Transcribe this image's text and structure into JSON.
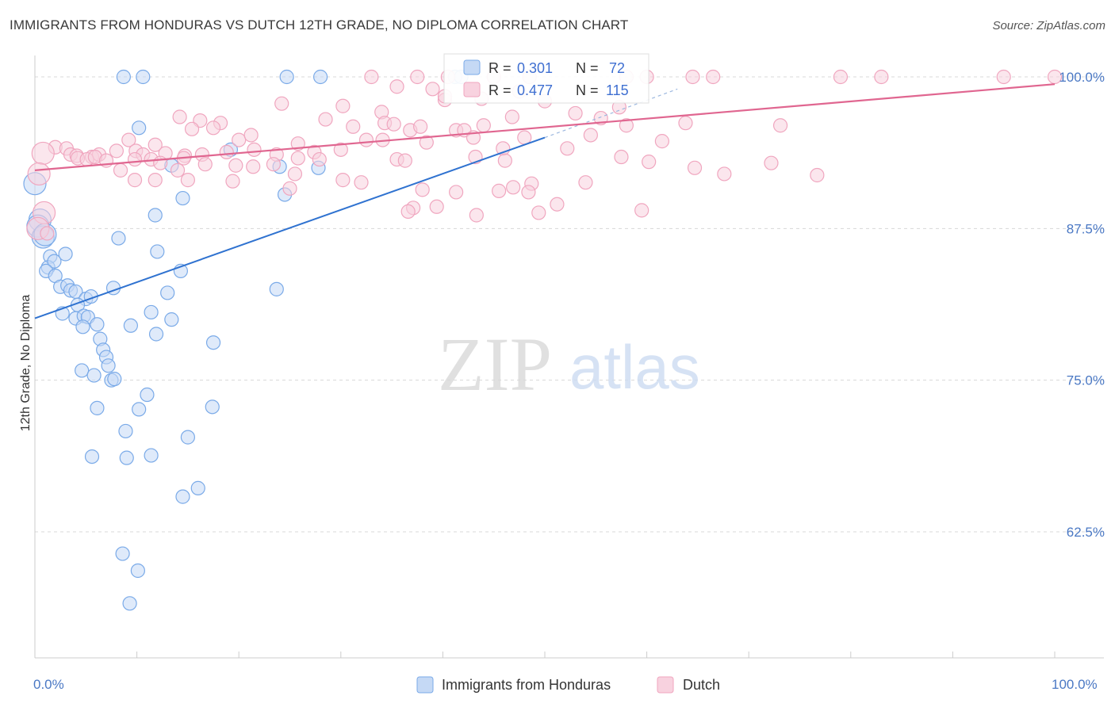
{
  "chart_data": {
    "type": "scatter",
    "title": "IMMIGRANTS FROM HONDURAS VS DUTCH 12TH GRADE, NO DIPLOMA CORRELATION CHART",
    "source": "Source: ZipAtlas.com",
    "watermark": {
      "zip": "ZIP",
      "atlas": "atlas"
    },
    "xlabel": "",
    "ylabel": "12th Grade, No Diploma",
    "xlim": [
      0,
      100
    ],
    "ylim": [
      52.5,
      101.5
    ],
    "x_tick_labels": [
      "0.0%",
      "100.0%"
    ],
    "y_ticks": [
      {
        "value": 100,
        "label": "100.0%"
      },
      {
        "value": 87.5,
        "label": "87.5%"
      },
      {
        "value": 75,
        "label": "75.0%"
      },
      {
        "value": 62.5,
        "label": "62.5%"
      }
    ],
    "legend_stats": [
      {
        "r_label": "R =",
        "r": "0.301",
        "n_label": "N =",
        "n": "72"
      },
      {
        "r_label": "R =",
        "r": "0.477",
        "n_label": "N =",
        "n": "115"
      }
    ],
    "series": [
      {
        "name": "Immigrants from Honduras",
        "color": "#7aaae8",
        "fill": "#c5d9f5",
        "line_color": "#2f72d0",
        "trend": {
          "x0": 0,
          "y0": 80.1,
          "x1": 50,
          "y1": 95.0,
          "dashed_to_x": 63,
          "dashed_to_y": 99.0
        },
        "points": [
          [
            8.7,
            100
          ],
          [
            10.6,
            100
          ],
          [
            24.7,
            100
          ],
          [
            28,
            100
          ],
          [
            41.2,
            100
          ],
          [
            41.8,
            100
          ],
          [
            10.2,
            95.8
          ],
          [
            19.2,
            94
          ],
          [
            13.4,
            92.7
          ],
          [
            24,
            92.6
          ],
          [
            27.8,
            92.5
          ],
          [
            0,
            91.2
          ],
          [
            14.5,
            90
          ],
          [
            24.5,
            90.3
          ],
          [
            11.8,
            88.6
          ],
          [
            0.5,
            88.2
          ],
          [
            0.3,
            87.7
          ],
          [
            0.8,
            86.8
          ],
          [
            1,
            87
          ],
          [
            8.2,
            86.7
          ],
          [
            1.5,
            85.2
          ],
          [
            3,
            85.4
          ],
          [
            12,
            85.6
          ],
          [
            1.3,
            84.3
          ],
          [
            1.9,
            84.8
          ],
          [
            1.1,
            84
          ],
          [
            2,
            83.6
          ],
          [
            14.3,
            84
          ],
          [
            2.5,
            82.7
          ],
          [
            3.2,
            82.8
          ],
          [
            3.5,
            82.4
          ],
          [
            4,
            82.3
          ],
          [
            7.7,
            82.6
          ],
          [
            5,
            81.7
          ],
          [
            5.5,
            81.9
          ],
          [
            23.7,
            82.5
          ],
          [
            13,
            82.2
          ],
          [
            4.2,
            81.2
          ],
          [
            2.7,
            80.5
          ],
          [
            4,
            80.1
          ],
          [
            4.8,
            80.3
          ],
          [
            5.2,
            80.2
          ],
          [
            11.4,
            80.6
          ],
          [
            13.4,
            80
          ],
          [
            4.7,
            79.4
          ],
          [
            6.1,
            79.6
          ],
          [
            9.4,
            79.5
          ],
          [
            11.9,
            78.8
          ],
          [
            6.4,
            78.4
          ],
          [
            17.5,
            78.1
          ],
          [
            6.7,
            77.5
          ],
          [
            7,
            76.9
          ],
          [
            7.2,
            76.2
          ],
          [
            4.6,
            75.8
          ],
          [
            5.8,
            75.4
          ],
          [
            7.5,
            75
          ],
          [
            7.8,
            75.1
          ],
          [
            11,
            73.8
          ],
          [
            6.1,
            72.7
          ],
          [
            10.2,
            72.6
          ],
          [
            17.4,
            72.8
          ],
          [
            8.9,
            70.8
          ],
          [
            15,
            70.3
          ],
          [
            5.6,
            68.7
          ],
          [
            9,
            68.6
          ],
          [
            11.4,
            68.8
          ],
          [
            16,
            66.1
          ],
          [
            14.5,
            65.4
          ],
          [
            8.6,
            60.7
          ],
          [
            10.1,
            59.3
          ],
          [
            9.3,
            56.6
          ]
        ]
      },
      {
        "name": "Dutch",
        "color": "#f0a6bf",
        "fill": "#f8d2df",
        "line_color": "#e06690",
        "trend": {
          "x0": 0,
          "y0": 92.3,
          "x1": 100,
          "y1": 99.4
        },
        "points": [
          [
            33,
            100
          ],
          [
            37.5,
            100
          ],
          [
            40.5,
            100
          ],
          [
            45,
            100
          ],
          [
            48.5,
            100
          ],
          [
            58,
            100
          ],
          [
            60,
            100
          ],
          [
            64.5,
            100
          ],
          [
            66.5,
            100
          ],
          [
            79,
            100
          ],
          [
            83,
            100
          ],
          [
            95,
            100
          ],
          [
            100,
            100
          ],
          [
            35.5,
            99.2
          ],
          [
            39,
            99
          ],
          [
            47.5,
            98.8
          ],
          [
            40.2,
            98.1
          ],
          [
            43.8,
            98.2
          ],
          [
            40.2,
            98.4
          ],
          [
            24.2,
            97.8
          ],
          [
            30.2,
            97.6
          ],
          [
            50,
            98
          ],
          [
            57.3,
            97.5
          ],
          [
            34,
            97.1
          ],
          [
            53,
            97
          ],
          [
            55.5,
            96.6
          ],
          [
            14.2,
            96.7
          ],
          [
            16.2,
            96.4
          ],
          [
            18.2,
            96.2
          ],
          [
            28.5,
            96.5
          ],
          [
            31.2,
            95.9
          ],
          [
            34.3,
            96.2
          ],
          [
            46.8,
            96.7
          ],
          [
            35.2,
            96.1
          ],
          [
            36.8,
            95.6
          ],
          [
            37.8,
            95.9
          ],
          [
            41.3,
            95.6
          ],
          [
            42.1,
            95.6
          ],
          [
            44,
            96
          ],
          [
            58,
            96
          ],
          [
            63.8,
            96.2
          ],
          [
            73.1,
            96
          ],
          [
            15.4,
            95.7
          ],
          [
            17.5,
            95.8
          ],
          [
            20,
            94.8
          ],
          [
            21.2,
            95.2
          ],
          [
            25.8,
            94.5
          ],
          [
            32.5,
            94.8
          ],
          [
            34.1,
            94.8
          ],
          [
            38.4,
            94.6
          ],
          [
            43,
            95
          ],
          [
            48,
            95
          ],
          [
            54.5,
            95.2
          ],
          [
            61.5,
            94.7
          ],
          [
            9.2,
            94.8
          ],
          [
            11.8,
            94.4
          ],
          [
            2,
            94.2
          ],
          [
            3.1,
            94.1
          ],
          [
            3.5,
            93.6
          ],
          [
            0.8,
            93.7
          ],
          [
            4.1,
            93.5
          ],
          [
            5.6,
            93.4
          ],
          [
            6.3,
            93.6
          ],
          [
            8,
            93.9
          ],
          [
            9.9,
            93.9
          ],
          [
            10.6,
            93.6
          ],
          [
            12.8,
            93.7
          ],
          [
            14.7,
            93.5
          ],
          [
            16.4,
            93.6
          ],
          [
            18.8,
            93.8
          ],
          [
            21.5,
            94
          ],
          [
            23.7,
            93.6
          ],
          [
            25.8,
            93.3
          ],
          [
            27.4,
            93.8
          ],
          [
            30,
            94
          ],
          [
            35.5,
            93.2
          ],
          [
            45.9,
            94.1
          ],
          [
            52.2,
            94.1
          ],
          [
            4.2,
            93.3
          ],
          [
            5.1,
            93.2
          ],
          [
            5.9,
            93.4
          ],
          [
            7,
            93.1
          ],
          [
            9.8,
            93.2
          ],
          [
            11.4,
            93.2
          ],
          [
            12.3,
            92.9
          ],
          [
            14.6,
            93.3
          ],
          [
            16.7,
            92.8
          ],
          [
            21.4,
            92.6
          ],
          [
            23.4,
            92.8
          ],
          [
            27.9,
            93.2
          ],
          [
            36.3,
            93.1
          ],
          [
            43.2,
            93.4
          ],
          [
            46.1,
            93.1
          ],
          [
            57.5,
            93.4
          ],
          [
            60.2,
            93
          ],
          [
            72.2,
            92.9
          ],
          [
            0.4,
            92
          ],
          [
            8.4,
            92.3
          ],
          [
            14,
            92.3
          ],
          [
            19.7,
            92.7
          ],
          [
            25.5,
            92
          ],
          [
            54,
            91.3
          ],
          [
            67.6,
            92
          ],
          [
            64.7,
            92.5
          ],
          [
            76.7,
            91.9
          ],
          [
            32,
            91.3
          ],
          [
            30.2,
            91.5
          ],
          [
            9.8,
            91.5
          ],
          [
            11.8,
            91.5
          ],
          [
            15,
            91.5
          ],
          [
            19.4,
            91.4
          ],
          [
            25,
            90.8
          ],
          [
            38,
            90.7
          ],
          [
            41.3,
            90.5
          ],
          [
            45.5,
            90.6
          ],
          [
            48.7,
            91.2
          ],
          [
            46.9,
            90.9
          ],
          [
            48.4,
            90.5
          ],
          [
            37.1,
            89.2
          ],
          [
            39.4,
            89.3
          ],
          [
            51.2,
            89.5
          ],
          [
            36.6,
            88.9
          ],
          [
            43.3,
            88.6
          ],
          [
            49.4,
            88.8
          ],
          [
            59.5,
            89
          ],
          [
            0.9,
            88.8
          ],
          [
            0.3,
            87.5
          ],
          [
            1.2,
            87.1
          ]
        ]
      }
    ]
  }
}
